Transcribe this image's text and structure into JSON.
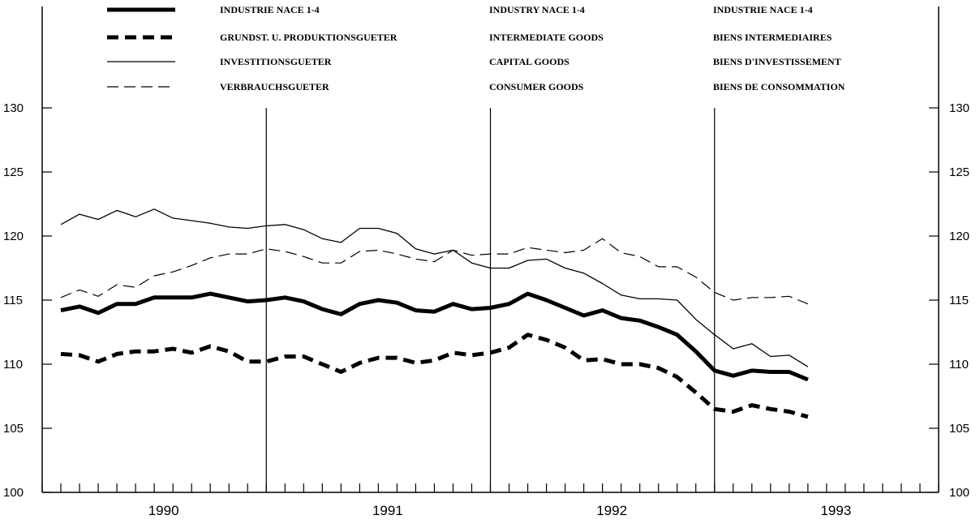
{
  "chart_data": {
    "type": "line",
    "ylim": [
      100,
      130
    ],
    "yticks": [
      100,
      105,
      110,
      115,
      120,
      125,
      130
    ],
    "ytick_labels": [
      "100",
      "105",
      "110",
      "115",
      "120",
      "125",
      "130"
    ],
    "years": [
      "1990",
      "1991",
      "1992",
      "1993"
    ],
    "x_start": "1989-12",
    "x_end": "1993-12",
    "legend_columns": {
      "de": [
        "INDUSTRIE NACE 1-4",
        "GRUNDST. U. PRODUKTIONSGUETER",
        "INVESTITIONSGUETER",
        "VERBRAUCHSGUETER"
      ],
      "en": [
        "INDUSTRY NACE 1-4",
        "INTERMEDIATE GOODS",
        "CAPITAL GOODS",
        "CONSUMER GOODS"
      ],
      "fr": [
        "INDUSTRIE NACE 1-4",
        "BIENS INTERMEDIAIRES",
        "BIENS D'INVESTISSEMENT",
        "BIENS DE CONSOMMATION"
      ]
    },
    "series": [
      {
        "name": "INDUSTRIE NACE 1-4",
        "style": "thick-solid",
        "start": "1990-01",
        "values": [
          114.2,
          114.5,
          114.0,
          114.7,
          114.7,
          115.2,
          115.2,
          115.2,
          115.5,
          115.2,
          114.9,
          115.0,
          115.2,
          114.9,
          114.3,
          113.9,
          114.7,
          115.0,
          114.8,
          114.2,
          114.1,
          114.7,
          114.3,
          114.4,
          114.7,
          115.5,
          115.0,
          114.4,
          113.8,
          114.2,
          113.6,
          113.4,
          112.9,
          112.3,
          111.0,
          109.5,
          109.1,
          109.5,
          109.4,
          109.4,
          108.8
        ]
      },
      {
        "name": "GRUNDST. U. PRODUKTIONSGUETER",
        "style": "thick-dashed",
        "start": "1990-01",
        "values": [
          110.8,
          110.7,
          110.2,
          110.8,
          111.0,
          111.0,
          111.2,
          110.9,
          111.4,
          111.0,
          110.2,
          110.2,
          110.6,
          110.6,
          110.0,
          109.4,
          110.1,
          110.5,
          110.5,
          110.1,
          110.3,
          110.9,
          110.7,
          110.9,
          111.3,
          112.3,
          111.9,
          111.3,
          110.3,
          110.4,
          110.0,
          110.0,
          109.7,
          109.0,
          107.8,
          106.5,
          106.3,
          106.8,
          106.5,
          106.3,
          105.9
        ]
      },
      {
        "name": "INVESTITIONSGUETER",
        "style": "thin-solid",
        "start": "1990-01",
        "values": [
          120.9,
          121.7,
          121.3,
          122.0,
          121.5,
          122.1,
          121.4,
          121.2,
          121.0,
          120.7,
          120.6,
          120.8,
          120.9,
          120.5,
          119.8,
          119.5,
          120.6,
          120.6,
          120.2,
          119.0,
          118.6,
          118.9,
          117.9,
          117.5,
          117.5,
          118.1,
          118.2,
          117.5,
          117.1,
          116.3,
          115.4,
          115.1,
          115.1,
          115.0,
          113.5,
          112.3,
          111.2,
          111.6,
          110.6,
          110.7,
          109.8
        ]
      },
      {
        "name": "VERBRAUCHSGUETER",
        "style": "thin-dashed",
        "start": "1990-01",
        "values": [
          115.2,
          115.8,
          115.3,
          116.2,
          116.0,
          116.9,
          117.2,
          117.7,
          118.3,
          118.6,
          118.6,
          119.0,
          118.8,
          118.4,
          117.9,
          117.9,
          118.8,
          118.9,
          118.6,
          118.2,
          118.0,
          118.9,
          118.5,
          118.6,
          118.6,
          119.1,
          118.9,
          118.7,
          118.9,
          119.8,
          118.7,
          118.4,
          117.6,
          117.6,
          116.8,
          115.6,
          115.0,
          115.2,
          115.2,
          115.3,
          114.7
        ]
      }
    ]
  }
}
